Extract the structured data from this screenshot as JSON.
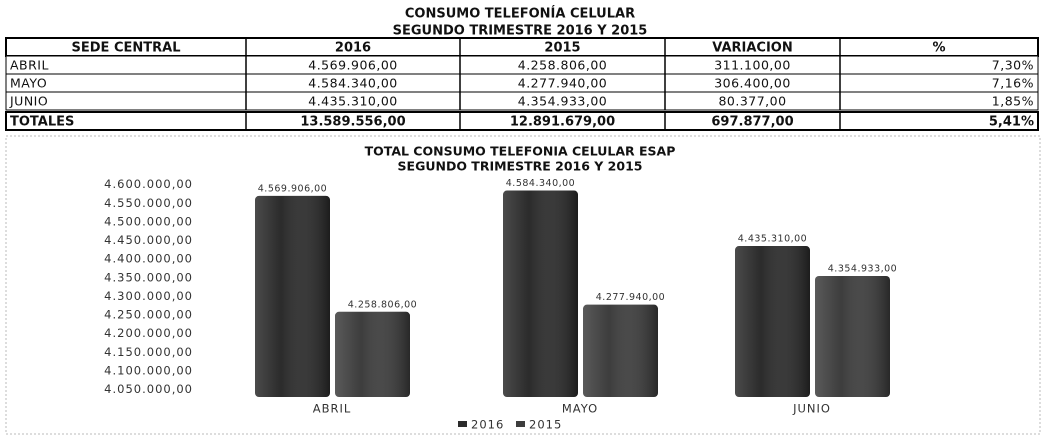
{
  "table": {
    "title": "CONSUMO TELEFONÍA CELULAR",
    "subtitle": "SEGUNDO TRIMESTRE 2016 Y 2015",
    "header": [
      "SEDE CENTRAL",
      "2016",
      "2015",
      "VARIACION",
      "%"
    ],
    "rows": [
      [
        "ABRIL",
        "4.569.906,00",
        "4.258.806,00",
        "311.100,00",
        "7,30%"
      ],
      [
        "MAYO",
        "4.584.340,00",
        "4.277.940,00",
        "306.400,00",
        "7,16%"
      ],
      [
        "JUNIO",
        "4.435.310,00",
        "4.354.933,00",
        "80.377,00",
        "1,85%"
      ]
    ],
    "totals": [
      "TOTALES",
      "13.589.556,00",
      "12.891.679,00",
      "697.877,00",
      "5,41%"
    ]
  },
  "chart_data": {
    "type": "bar",
    "title": "TOTAL CONSUMO TELEFONIA CELULAR ESAP",
    "subtitle": "SEGUNDO TRIMESTRE 2016 Y  2015",
    "categories": [
      "ABRIL",
      "MAYO",
      "JUNIO"
    ],
    "series": [
      {
        "name": "2016",
        "color": "#2b2b2b",
        "values": [
          4569906,
          4584340,
          4435310
        ],
        "value_labels": [
          "4.569.906,00",
          "4.584.340,00",
          "4.435.310,00"
        ]
      },
      {
        "name": "2015",
        "color": "#3d3d3d",
        "values": [
          4258806,
          4277940,
          4354933
        ],
        "value_labels": [
          "4.258.806,00",
          "4.277.940,00",
          "4.354.933,00"
        ]
      }
    ],
    "ylim": [
      4030000,
      4610000
    ],
    "yticks": [
      {
        "value": 4050000,
        "label": "4.050.000,00"
      },
      {
        "value": 4100000,
        "label": "4.100.000,00"
      },
      {
        "value": 4150000,
        "label": "4.150.000,00"
      },
      {
        "value": 4200000,
        "label": "4.200.000,00"
      },
      {
        "value": 4250000,
        "label": "4.250.000,00"
      },
      {
        "value": 4300000,
        "label": "4.300.000,00"
      },
      {
        "value": 4350000,
        "label": "4.350.000,00"
      },
      {
        "value": 4400000,
        "label": "4.400.000,00"
      },
      {
        "value": 4450000,
        "label": "4.450.000,00"
      },
      {
        "value": 4500000,
        "label": "4.500.000,00"
      },
      {
        "value": 4550000,
        "label": "4.550.000,00"
      },
      {
        "value": 4600000,
        "label": "4.600.000,00"
      }
    ],
    "grid": false,
    "legend": "bottom"
  }
}
